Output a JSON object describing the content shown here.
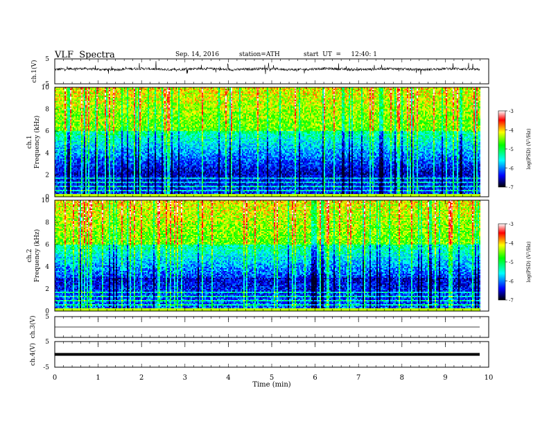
{
  "header": {
    "title": "VLF  Spectra",
    "date": "Sep. 14, 2016",
    "station": "station=ATH",
    "start": "start  UT  =     12:40: 1"
  },
  "chart_data": [
    {
      "type": "line",
      "ylabel": "ch.1(V)",
      "ylim": [
        -5,
        5
      ],
      "yticks": [
        "5",
        "-5"
      ],
      "description_signal": "noisy waveform around about 1 V with spikes"
    },
    {
      "type": "heatmap",
      "ylabel": "ch.1\nFrequency  (kHz)",
      "ylim": [
        0,
        10
      ],
      "yticks": [
        "0",
        "2",
        "4",
        "6",
        "8",
        "10"
      ],
      "colorbar": {
        "label": "log(PSD) (V²/Hz)",
        "range": [
          -7,
          -3
        ],
        "ticks": [
          "-3",
          "-4",
          "-5",
          "-6",
          "-7"
        ]
      }
    },
    {
      "type": "heatmap",
      "ylabel": "ch.2\nFrequency  (kHz)",
      "ylim": [
        0,
        10
      ],
      "yticks": [
        "0",
        "2",
        "4",
        "6",
        "8",
        "10"
      ],
      "colorbar": {
        "label": "log(PSD) (V²/Hz)",
        "range": [
          -7,
          -3
        ],
        "ticks": [
          "-3",
          "-4",
          "-5",
          "-6",
          "-7"
        ]
      }
    },
    {
      "type": "line",
      "ylabel": "ch.3(V)",
      "ylim": [
        -5,
        5
      ],
      "yticks": [
        "5"
      ],
      "level": 0
    },
    {
      "type": "line",
      "ylabel": "ch.4(V)",
      "ylim": [
        -5,
        5
      ],
      "yticks": [
        "5",
        "-5"
      ],
      "level": 0
    }
  ],
  "xaxis": {
    "xlabel": "Time  (min)",
    "xlim": [
      0,
      10
    ],
    "ticks": [
      "0",
      "1",
      "2",
      "3",
      "4",
      "5",
      "6",
      "7",
      "8",
      "9",
      "10"
    ]
  },
  "colors": {
    "colormap": [
      "#000040",
      "#0000ff",
      "#00ffff",
      "#00ff00",
      "#ffff00",
      "#ff0000",
      "#ffffff"
    ]
  }
}
